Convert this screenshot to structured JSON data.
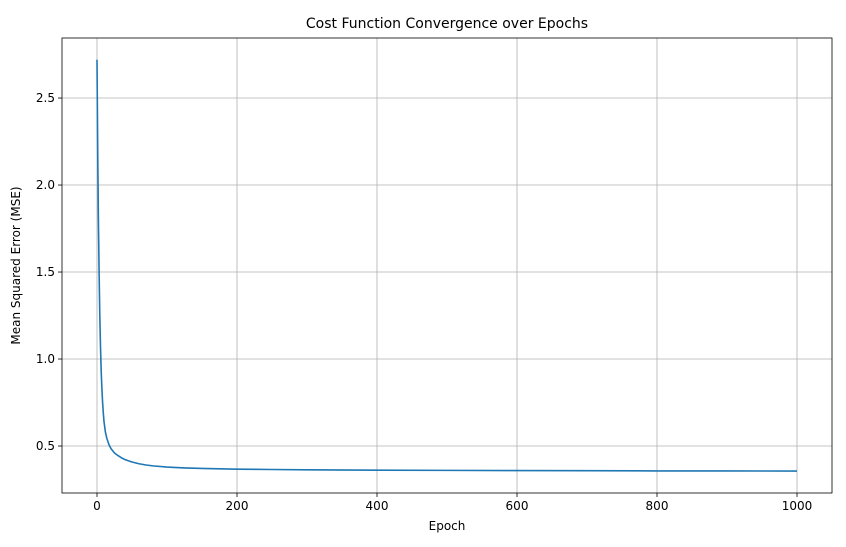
{
  "chart_data": {
    "type": "line",
    "title": "Cost Function Convergence over Epochs",
    "xlabel": "Epoch",
    "ylabel": "Mean Squared Error (MSE)",
    "xlim": [
      -50,
      1050
    ],
    "ylim": [
      0.23,
      2.845
    ],
    "xticks": [
      0,
      200,
      400,
      600,
      800,
      1000
    ],
    "yticks": [
      0.5,
      1.0,
      1.5,
      2.0,
      2.5
    ],
    "xtick_labels": [
      "0",
      "200",
      "400",
      "600",
      "800",
      "1000"
    ],
    "ytick_labels": [
      "0.5",
      "1.0",
      "1.5",
      "2.0",
      "2.5"
    ],
    "grid": true,
    "legend": "none",
    "series": [
      {
        "color": "#1f77b4",
        "x": [
          0,
          1,
          2,
          3,
          4,
          5,
          6,
          7,
          8,
          9,
          10,
          12,
          14,
          16,
          18,
          20,
          25,
          30,
          35,
          40,
          50,
          60,
          70,
          80,
          100,
          125,
          150,
          200,
          250,
          300,
          400,
          500,
          600,
          700,
          800,
          900,
          1000
        ],
        "y": [
          2.72,
          2.2,
          1.8,
          1.5,
          1.25,
          1.07,
          0.93,
          0.83,
          0.75,
          0.69,
          0.64,
          0.58,
          0.545,
          0.52,
          0.5,
          0.485,
          0.46,
          0.445,
          0.432,
          0.422,
          0.408,
          0.398,
          0.391,
          0.386,
          0.379,
          0.374,
          0.371,
          0.367,
          0.365,
          0.363,
          0.361,
          0.36,
          0.359,
          0.358,
          0.357,
          0.357,
          0.356
        ]
      }
    ]
  }
}
